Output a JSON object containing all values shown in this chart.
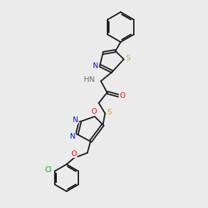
{
  "bg_color": "#ebebeb",
  "bond_color": "#1a1a1a",
  "atom_colors": {
    "N": "#0000ff",
    "O": "#ff0000",
    "S": "#ccaa00",
    "Cl": "#00aa00",
    "H": "#666666"
  },
  "lw": 1.4,
  "dbo": 0.055,
  "fs": 7.5
}
